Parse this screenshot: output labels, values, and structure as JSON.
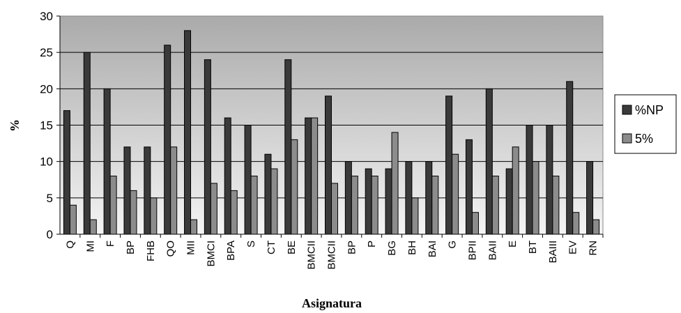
{
  "chart_data": {
    "type": "bar",
    "xlabel": "Asignatura",
    "ylabel": "%",
    "ylim": [
      0,
      30
    ],
    "yticks": [
      0,
      5,
      10,
      15,
      20,
      25,
      30
    ],
    "grid": true,
    "legend_position": "right",
    "categories": [
      "Q",
      "MI",
      "F",
      "BP",
      "FHB",
      "QO",
      "MII",
      "BMCI",
      "BPA",
      "S",
      "CT",
      "BE",
      "BMCII",
      "BMCII",
      "BP",
      "P",
      "BG",
      "BH",
      "BAI",
      "G",
      "BPII",
      "BAII",
      "E",
      "BT",
      "BAIII",
      "EV",
      "RN"
    ],
    "series": [
      {
        "name": "%NP",
        "color": "#3a3a3a",
        "values": [
          17,
          25,
          20,
          12,
          12,
          26,
          28,
          24,
          16,
          15,
          11,
          24,
          16,
          19,
          10,
          9,
          9,
          10,
          10,
          19,
          13,
          20,
          9,
          15,
          15,
          21,
          10
        ]
      },
      {
        "name": "5%",
        "color": "#8c8c8c",
        "values": [
          4,
          2,
          8,
          6,
          5,
          12,
          2,
          7,
          6,
          8,
          9,
          13,
          16,
          7,
          8,
          8,
          14,
          5,
          8,
          11,
          3,
          8,
          12,
          10,
          8,
          3,
          2
        ]
      }
    ]
  }
}
